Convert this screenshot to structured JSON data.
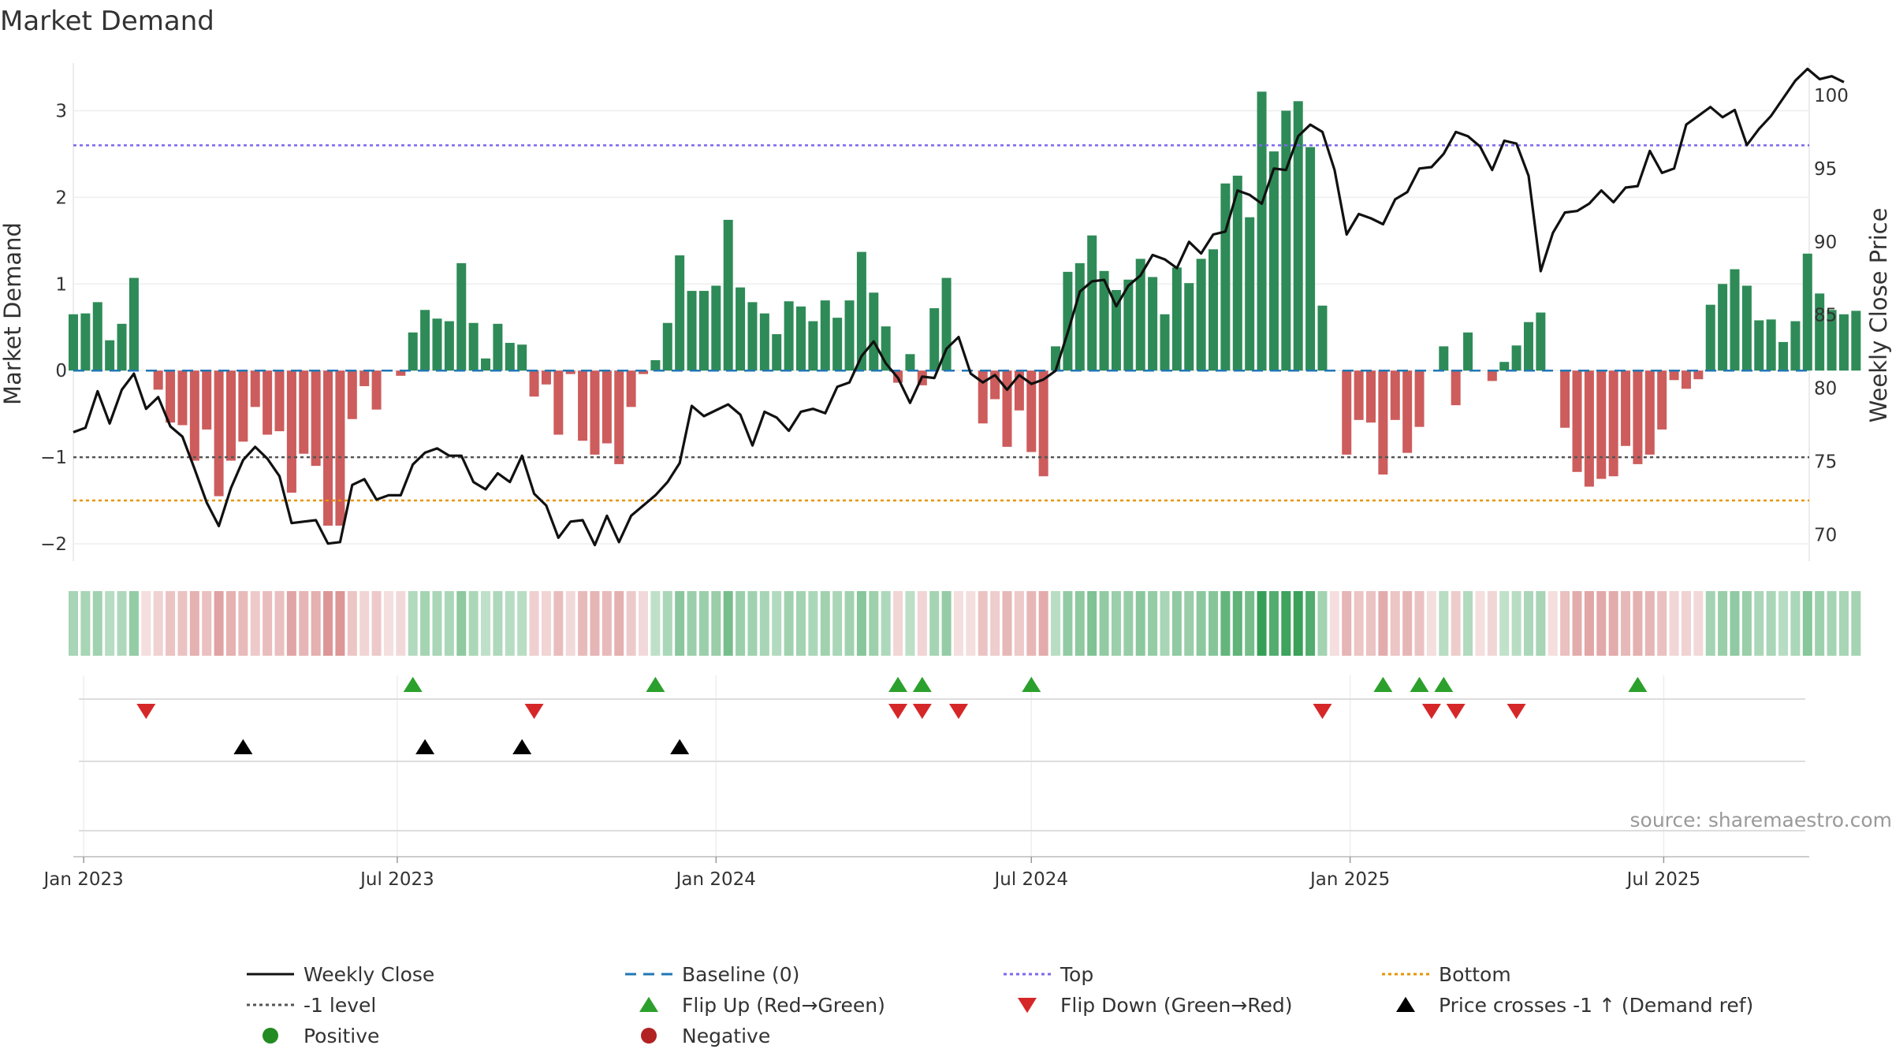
{
  "chart_data": {
    "type": "bar",
    "title": "Market Demand",
    "ylabel_left": "Market Demand",
    "ylabel_right": "Weekly Close Price",
    "ylim_left": [
      -2.2,
      3.55
    ],
    "ylim_right": [
      68.2,
      102.2
    ],
    "yticks_left": [
      -2,
      -1,
      0,
      1,
      2,
      3
    ],
    "ytick_labels_left": [
      "−2",
      "−1",
      "0",
      "1",
      "2",
      "3"
    ],
    "yticks_right": [
      70,
      75,
      80,
      85,
      90,
      95,
      100
    ],
    "ytick_labels_right": [
      "70",
      "75",
      "80",
      "85",
      "90",
      "95",
      "100"
    ],
    "x_start": "2022-12-26",
    "x_end": "2025-09-23",
    "xticks": [
      {
        "date": "2023-01-01",
        "label": "Jan 2023"
      },
      {
        "date": "2023-07-01",
        "label": "Jul 2023"
      },
      {
        "date": "2024-01-01",
        "label": "Jan 2024"
      },
      {
        "date": "2024-07-01",
        "label": "Jul 2024"
      },
      {
        "date": "2025-01-01",
        "label": "Jan 2025"
      },
      {
        "date": "2025-07-01",
        "label": "Jul 2025"
      }
    ],
    "first_week": "2022-12-26",
    "demand": [
      0.65,
      0.66,
      0.79,
      0.35,
      0.54,
      1.07,
      0,
      -0.22,
      -0.6,
      -0.63,
      -1.04,
      -0.68,
      -1.45,
      -1.04,
      -0.82,
      -0.42,
      -0.74,
      -0.7,
      -1.41,
      -0.96,
      -1.1,
      -1.79,
      -1.79,
      -0.56,
      -0.18,
      -0.45,
      0,
      -0.06,
      0.44,
      0.7,
      0.6,
      0.57,
      1.24,
      0.55,
      0.14,
      0.54,
      0.32,
      0.3,
      -0.3,
      -0.16,
      -0.74,
      -0.04,
      -0.81,
      -0.97,
      -0.84,
      -1.08,
      -0.42,
      -0.04,
      0.12,
      0.55,
      1.33,
      0.92,
      0.92,
      0.98,
      1.74,
      0.96,
      0.79,
      0.66,
      0.42,
      0.8,
      0.74,
      0.57,
      0.81,
      0.61,
      0.81,
      1.37,
      0.9,
      0.51,
      -0.14,
      0.19,
      -0.17,
      0.72,
      1.07,
      0,
      0,
      -0.61,
      -0.33,
      -0.88,
      -0.46,
      -0.94,
      -1.22,
      0.28,
      1.14,
      1.24,
      1.56,
      1.15,
      0.93,
      1.05,
      1.29,
      1.08,
      0.65,
      1.19,
      1.01,
      1.29,
      1.4,
      2.16,
      2.25,
      1.77,
      3.22,
      2.53,
      3.0,
      3.11,
      2.58,
      0.75,
      0,
      -0.97,
      -0.57,
      -0.6,
      -1.2,
      -0.57,
      -0.95,
      -0.65,
      0,
      0.28,
      -0.4,
      0.44,
      0,
      -0.12,
      0.1,
      0.29,
      0.56,
      0.67,
      0,
      -0.66,
      -1.17,
      -1.34,
      -1.25,
      -1.22,
      -0.87,
      -1.08,
      -0.97,
      -0.68,
      -0.11,
      -0.21,
      -0.1,
      0.76,
      1.0,
      1.17,
      0.98,
      0.58,
      0.59,
      0.33,
      0.57,
      1.35,
      0.89,
      0.7,
      0.65,
      0.69
    ],
    "close": [
      77.0,
      77.3,
      79.8,
      77.6,
      79.9,
      81.0,
      78.6,
      79.4,
      77.4,
      76.7,
      74.5,
      72.2,
      70.6,
      73.2,
      75.1,
      76.0,
      75.2,
      74.0,
      70.8,
      70.9,
      71.0,
      69.4,
      69.5,
      73.4,
      73.8,
      72.4,
      72.7,
      72.7,
      74.8,
      75.6,
      75.9,
      75.4,
      75.4,
      73.6,
      73.1,
      74.2,
      73.6,
      75.4,
      72.8,
      72.0,
      69.8,
      70.9,
      71.0,
      69.3,
      71.3,
      69.5,
      71.3,
      72.0,
      72.7,
      73.6,
      74.9,
      78.8,
      78.1,
      78.5,
      78.9,
      78.2,
      76.1,
      78.4,
      78.0,
      77.1,
      78.4,
      78.6,
      78.3,
      80.1,
      80.4,
      82.2,
      83.2,
      81.7,
      80.7,
      79.0,
      80.8,
      80.7,
      82.7,
      83.5,
      81.0,
      80.4,
      80.9,
      79.9,
      80.9,
      80.3,
      80.6,
      81.2,
      83.8,
      86.6,
      87.3,
      87.4,
      85.6,
      87.0,
      87.7,
      89.1,
      88.8,
      88.2,
      90.0,
      89.2,
      90.5,
      90.7,
      93.5,
      93.2,
      92.6,
      95.0,
      94.9,
      97.2,
      98.0,
      97.5,
      94.9,
      90.5,
      91.9,
      91.6,
      91.2,
      92.9,
      93.4,
      95.0,
      95.1,
      96.0,
      97.5,
      97.2,
      96.5,
      94.9,
      96.9,
      96.7,
      94.5,
      88.0,
      90.6,
      92.0,
      92.1,
      92.6,
      93.5,
      92.7,
      93.7,
      93.8,
      96.2,
      94.7,
      95.0,
      98.0,
      98.6,
      99.2,
      98.5,
      99.0,
      96.6,
      97.7,
      98.6,
      99.8,
      101.0,
      101.8,
      101.1,
      101.3,
      100.9
    ],
    "flip_up_weeks": [
      28,
      48,
      68,
      70,
      79,
      108,
      111,
      113,
      129
    ],
    "flip_down_weeks": [
      6,
      38,
      68,
      70,
      73,
      103,
      112,
      114,
      119
    ],
    "price_cross_weeks": [
      14,
      29,
      37,
      50
    ],
    "lines": {
      "top": 2.6,
      "minus1": -1.0,
      "bottom": -1.5
    },
    "colors": {
      "positive": "#2e8b57",
      "negative": "#cd5c5c",
      "close": "#111111",
      "baseline": "#1f77b4",
      "top": "#7b68ee",
      "minus1": "#555555",
      "bottom": "#e69500",
      "flip_up": "#2ca02c",
      "flip_down": "#d62728",
      "cross": "#000000",
      "legend_positive": "#228b22",
      "legend_negative": "#b22222"
    },
    "legend": [
      {
        "label": "Weekly Close",
        "kind": "line-solid",
        "color": "#111111"
      },
      {
        "label": "Baseline (0)",
        "kind": "line-dash",
        "color": "#1f77b4"
      },
      {
        "label": "Top",
        "kind": "line-dot",
        "color": "#7b68ee"
      },
      {
        "label": "Bottom",
        "kind": "line-dot",
        "color": "#e69500"
      },
      {
        "label": "-1 level",
        "kind": "line-dot",
        "color": "#555555"
      },
      {
        "label": "Flip Up (Red→Green)",
        "kind": "tri-up",
        "color": "#2ca02c"
      },
      {
        "label": "Flip Down (Green→Red)",
        "kind": "tri-down",
        "color": "#d62728"
      },
      {
        "label": "Price crosses -1 ↑ (Demand ref)",
        "kind": "tri-up",
        "color": "#000000"
      },
      {
        "label": "Positive",
        "kind": "dot",
        "color": "#228b22"
      },
      {
        "label": "Negative",
        "kind": "dot",
        "color": "#b22222"
      }
    ],
    "legend_position": "bottom",
    "grid": true,
    "source": "source: sharemaestro.com"
  }
}
